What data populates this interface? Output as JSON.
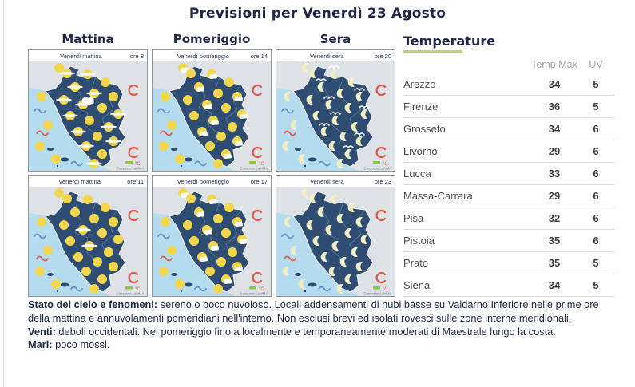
{
  "title": "Previsioni per Venerdì 23 Agosto",
  "columns": [
    {
      "label": "Mattina"
    },
    {
      "label": "Pomeriggio"
    },
    {
      "label": "Sera"
    }
  ],
  "maps": [
    {
      "caption": "Venerdì mattina",
      "hour": "ore 8",
      "condition": "sun_streak"
    },
    {
      "caption": "Venerdì pomeriggio",
      "hour": "ore 14",
      "condition": "sun_cloud"
    },
    {
      "caption": "Venerdì sera",
      "hour": "ore 20",
      "condition": "moon_streak"
    },
    {
      "caption": "Venerdì mattina",
      "hour": "ore 11",
      "condition": "sun"
    },
    {
      "caption": "Venerdì pomeriggio",
      "hour": "ore 17",
      "condition": "sun_cloud"
    },
    {
      "caption": "Venerdì sera",
      "hour": "ore 23",
      "condition": "moon"
    }
  ],
  "map_credit": "Consorzio LaMMA",
  "map_legend_unit": "°C",
  "temperature": {
    "heading": "Temperature",
    "col_temp_max": "Temp Max",
    "col_uv": "UV",
    "rows": [
      {
        "city": "Arezzo",
        "temp_max": "34",
        "uv": "5"
      },
      {
        "city": "Firenze",
        "temp_max": "36",
        "uv": "5"
      },
      {
        "city": "Grosseto",
        "temp_max": "34",
        "uv": "6"
      },
      {
        "city": "Livorno",
        "temp_max": "29",
        "uv": "6"
      },
      {
        "city": "Lucca",
        "temp_max": "33",
        "uv": "6"
      },
      {
        "city": "Massa-Carrara",
        "temp_max": "29",
        "uv": "6"
      },
      {
        "city": "Pisa",
        "temp_max": "32",
        "uv": "6"
      },
      {
        "city": "Pistoia",
        "temp_max": "35",
        "uv": "6"
      },
      {
        "city": "Prato",
        "temp_max": "35",
        "uv": "5"
      },
      {
        "city": "Siena",
        "temp_max": "34",
        "uv": "5"
      }
    ]
  },
  "bulletin": [
    {
      "label": "Stato del cielo e fenomeni:",
      "text": " sereno o poco nuvoloso. Locali addensamenti di nubi basse su Valdarno Inferiore nelle prime ore della mattina e annuvolamenti pomeridiani nell'interno. Non esclusi brevi ed isolati rovesci sulle zone interne meridionali."
    },
    {
      "label": "Venti:",
      "text": " deboli occidentali. Nel pomeriggio fino a localmente e temporaneamente moderati di Maestrale lungo la costa."
    },
    {
      "label": "Mari:",
      "text": " poco mossi."
    }
  ],
  "colors": {
    "navy": "#1c2749",
    "accent_underline": "#c3d469",
    "sea": "#b5dbee",
    "region": "#2f4d72",
    "land": "#dee2e6",
    "sun": "#f2d74e",
    "moon": "#efeec4",
    "red_symbol": "#dd5a4b",
    "blue_symbol": "#5b8fc9",
    "green_legend": "#8dc63f"
  }
}
